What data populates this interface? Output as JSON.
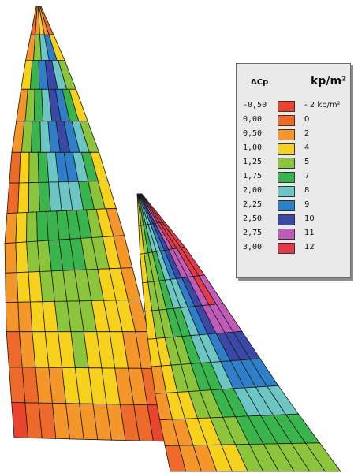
{
  "legend": {
    "head_dcp": "ΔCp",
    "head_unit": "kp/m²",
    "rows": [
      {
        "dcp": "-0,50",
        "kp": "- 2 kp/m²",
        "color": "#e8452c"
      },
      {
        "dcp": "0,00",
        "kp": "0",
        "color": "#ee6a2a"
      },
      {
        "dcp": "0,50",
        "kp": "2",
        "color": "#f4962a"
      },
      {
        "dcp": "1,00",
        "kp": "4",
        "color": "#f6d21c"
      },
      {
        "dcp": "1,25",
        "kp": "5",
        "color": "#8cc43c"
      },
      {
        "dcp": "1,75",
        "kp": "7",
        "color": "#3ab44c"
      },
      {
        "dcp": "2,00",
        "kp": "8",
        "color": "#6cc6c4"
      },
      {
        "dcp": "2,25",
        "kp": "9",
        "color": "#2e7ec8"
      },
      {
        "dcp": "2,50",
        "kp": "10",
        "color": "#3a48a8"
      },
      {
        "dcp": "2,75",
        "kp": "11",
        "color": "#c05cb8"
      },
      {
        "dcp": "3,00",
        "kp": "12",
        "color": "#e23a4a"
      }
    ]
  },
  "sails": {
    "main_rows": [
      [
        1,
        2,
        3,
        2,
        1
      ],
      [
        2,
        4,
        6,
        7,
        3
      ],
      [
        3,
        5,
        7,
        8,
        6,
        4
      ],
      [
        2,
        4,
        5,
        6,
        8,
        7,
        5,
        3
      ],
      [
        2,
        4,
        5,
        6,
        7,
        8,
        7,
        6,
        4
      ],
      [
        1,
        3,
        4,
        5,
        6,
        7,
        7,
        6,
        5,
        3
      ],
      [
        1,
        3,
        4,
        5,
        6,
        6,
        6,
        5,
        4,
        3
      ],
      [
        2,
        3,
        4,
        5,
        5,
        5,
        5,
        5,
        4,
        3,
        2
      ],
      [
        2,
        3,
        4,
        4,
        5,
        5,
        5,
        4,
        4,
        3,
        2
      ],
      [
        2,
        3,
        3,
        4,
        4,
        4,
        4,
        4,
        3,
        3,
        2
      ],
      [
        2,
        2,
        3,
        3,
        4,
        4,
        4,
        3,
        3,
        3,
        2
      ],
      [
        1,
        2,
        3,
        3,
        3,
        4,
        3,
        3,
        3,
        2,
        2
      ],
      [
        1,
        1,
        2,
        2,
        3,
        3,
        3,
        3,
        2,
        2,
        1
      ],
      [
        0,
        1,
        1,
        2,
        2,
        2,
        2,
        2,
        1,
        1,
        0
      ]
    ],
    "jib_rows": [
      [
        3,
        4,
        5,
        6,
        6,
        7,
        8,
        9,
        10,
        10,
        10
      ],
      [
        3,
        4,
        5,
        6,
        6,
        7,
        8,
        9,
        10,
        10,
        10
      ],
      [
        3,
        4,
        4,
        5,
        6,
        7,
        8,
        9,
        9,
        10,
        10
      ],
      [
        3,
        4,
        4,
        5,
        6,
        6,
        7,
        8,
        9,
        10,
        9
      ],
      [
        3,
        4,
        4,
        5,
        5,
        6,
        7,
        8,
        9,
        9,
        9
      ],
      [
        3,
        3,
        4,
        4,
        5,
        6,
        6,
        7,
        8,
        8,
        8
      ],
      [
        2,
        3,
        4,
        4,
        5,
        5,
        6,
        7,
        7,
        7,
        7
      ],
      [
        2,
        3,
        3,
        4,
        4,
        5,
        5,
        6,
        6,
        6,
        6
      ],
      [
        2,
        2,
        3,
        3,
        4,
        4,
        5,
        5,
        5,
        5,
        5
      ],
      [
        1,
        2,
        2,
        3,
        3,
        4,
        4,
        4,
        4,
        4,
        4
      ]
    ]
  }
}
